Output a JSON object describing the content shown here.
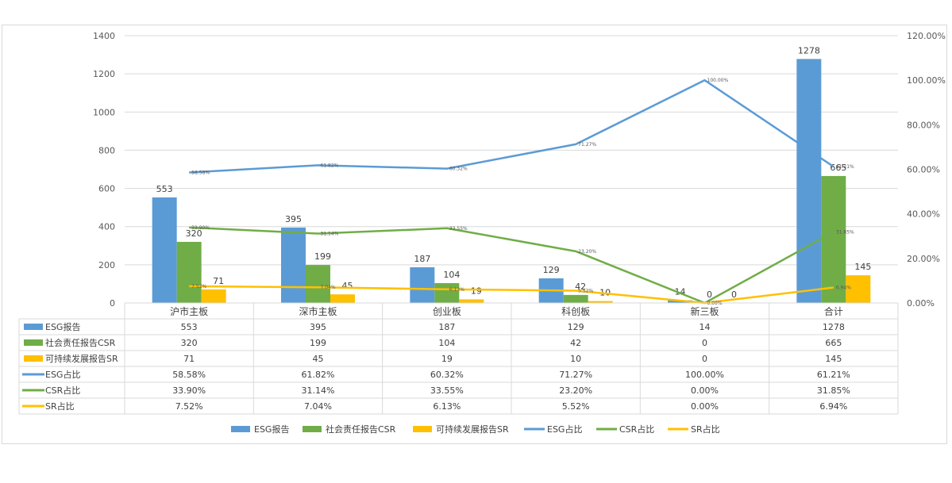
{
  "chart_data": {
    "type": "bar+line",
    "categories": [
      "沪市主板",
      "深市主板",
      "创业板",
      "科创板",
      "新三板",
      "合计"
    ],
    "y_left": {
      "range": [
        0,
        1400
      ],
      "ticks": [
        "0",
        "200",
        "400",
        "600",
        "800",
        "1000",
        "1200",
        "1400"
      ]
    },
    "y_right": {
      "range": [
        0,
        1.2
      ],
      "ticks": [
        "0.00%",
        "20.00%",
        "40.00%",
        "60.00%",
        "80.00%",
        "100.00%",
        "120.00%"
      ]
    },
    "bar_series": [
      {
        "name": "ESG报告",
        "color": "#5b9bd5",
        "values": [
          553,
          395,
          187,
          129,
          14,
          1278
        ],
        "labels": [
          "553",
          "395",
          "187",
          "129",
          "14",
          "1278"
        ]
      },
      {
        "name": "社会责任报告CSR",
        "color": "#70ad47",
        "values": [
          320,
          199,
          104,
          42,
          0,
          665
        ],
        "labels": [
          "320",
          "199",
          "104",
          "42",
          "0",
          "665"
        ]
      },
      {
        "name": "可持续发展报告SR",
        "color": "#ffc000",
        "values": [
          71,
          45,
          19,
          10,
          0,
          145
        ],
        "labels": [
          "71",
          "45",
          "19",
          "10",
          "0",
          "145"
        ]
      }
    ],
    "line_series": [
      {
        "name": "ESG占比",
        "color": "#5b9bd5",
        "values": [
          0.5858,
          0.6182,
          0.6032,
          0.7127,
          1.0,
          0.6121
        ],
        "labels": [
          "58.58%",
          "61.82%",
          "60.32%",
          "71.27%",
          "100.00%",
          "61.21%"
        ]
      },
      {
        "name": "CSR占比",
        "color": "#70ad47",
        "values": [
          0.339,
          0.3114,
          0.3355,
          0.232,
          0.0,
          0.3185
        ],
        "labels": [
          "33.90%",
          "31.14%",
          "33.55%",
          "23.20%",
          "0.00%",
          "31.85%"
        ]
      },
      {
        "name": "SR占比",
        "color": "#ffc000",
        "values": [
          0.0752,
          0.0704,
          0.0613,
          0.0552,
          0.0,
          0.0694
        ],
        "labels": [
          "7.52%",
          "7.04%",
          "6.13%",
          "5.52%",
          "0.00%",
          "6.94%"
        ]
      }
    ],
    "legend_position": "bottom",
    "grid": true,
    "data_table": true
  }
}
